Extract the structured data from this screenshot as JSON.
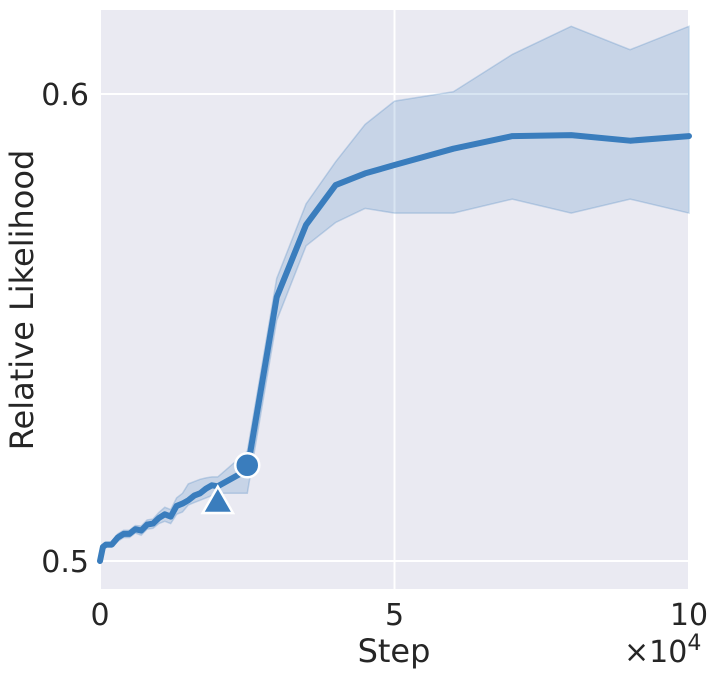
{
  "chart_data": {
    "type": "line",
    "xlabel": "Step",
    "ylabel": "Relative Likelihood",
    "x_multiplier_label": "×10",
    "x_multiplier_exponent": "4",
    "xlim": [
      0,
      100000
    ],
    "ylim": [
      0.494,
      0.618
    ],
    "x_ticks": [
      {
        "value": 0,
        "label": "0"
      },
      {
        "value": 50000,
        "label": "5"
      },
      {
        "value": 100000,
        "label": "10"
      }
    ],
    "y_ticks": [
      {
        "value": 0.5,
        "label": "0.5"
      },
      {
        "value": 0.6,
        "label": "0.6"
      }
    ],
    "grid": true,
    "colors": {
      "background": "#eaeaf2",
      "line": "#3a7dbd",
      "band": "#3a7dbd",
      "grid": "#ffffff"
    },
    "series": [
      {
        "x": [
          0,
          500,
          1000,
          2000,
          3000,
          4000,
          5000,
          6000,
          7000,
          8000,
          9000,
          10000,
          11000,
          12000,
          13000,
          14000,
          15000,
          16000,
          17000,
          18000,
          19000,
          20000,
          25000,
          30000,
          35000,
          40000,
          45000,
          50000,
          60000,
          70000,
          80000,
          90000,
          100000
        ],
        "y": [
          0.5,
          0.503,
          0.5035,
          0.5035,
          0.505,
          0.5058,
          0.5058,
          0.5068,
          0.5065,
          0.5078,
          0.508,
          0.5092,
          0.51,
          0.5095,
          0.5118,
          0.5123,
          0.513,
          0.514,
          0.5145,
          0.5155,
          0.5162,
          0.516,
          0.5195,
          0.5565,
          0.572,
          0.5805,
          0.583,
          0.5848,
          0.5883,
          0.591,
          0.5912,
          0.59,
          0.591
        ],
        "band_lower": [
          0.4995,
          0.5025,
          0.503,
          0.503,
          0.5042,
          0.505,
          0.505,
          0.506,
          0.5055,
          0.5068,
          0.507,
          0.508,
          0.5085,
          0.508,
          0.51,
          0.5105,
          0.512,
          0.5125,
          0.513,
          0.5135,
          0.514,
          0.5145,
          0.5145,
          0.5515,
          0.5675,
          0.5725,
          0.5755,
          0.5745,
          0.5745,
          0.5775,
          0.5745,
          0.5775,
          0.5745
        ],
        "band_upper": [
          0.5005,
          0.5035,
          0.504,
          0.504,
          0.5058,
          0.5066,
          0.5066,
          0.5076,
          0.5075,
          0.5088,
          0.509,
          0.5104,
          0.5115,
          0.511,
          0.5135,
          0.5145,
          0.5165,
          0.517,
          0.5175,
          0.5178,
          0.518,
          0.518,
          0.5235,
          0.5605,
          0.5765,
          0.5855,
          0.5935,
          0.5985,
          0.6005,
          0.6085,
          0.6145,
          0.6095,
          0.6145
        ]
      }
    ],
    "markers": [
      {
        "shape": "triangle",
        "x": 20000,
        "y": 0.5125
      },
      {
        "shape": "circle",
        "x": 25000,
        "y": 0.5205
      }
    ]
  }
}
